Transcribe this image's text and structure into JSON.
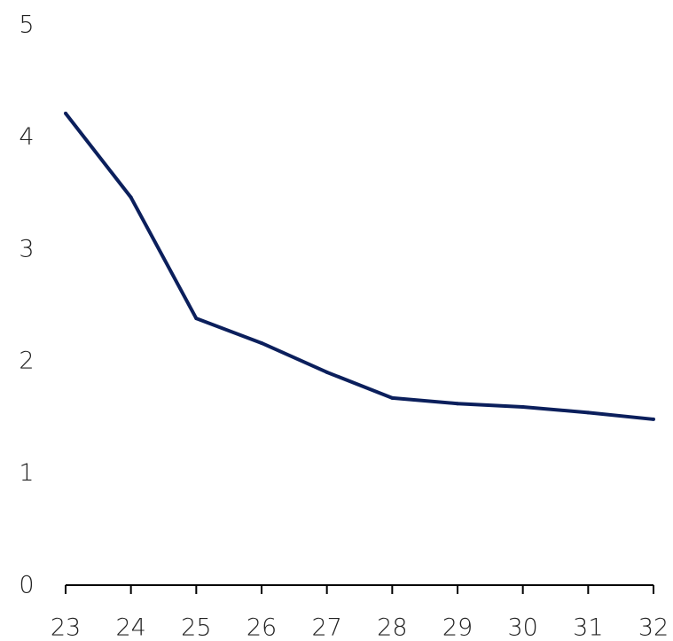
{
  "chart_data": {
    "type": "line",
    "title": "",
    "xlabel": "",
    "ylabel": "",
    "x": [
      23,
      24,
      25,
      26,
      27,
      28,
      29,
      30,
      31,
      32
    ],
    "x_tick_labels": [
      "23",
      "24",
      "25",
      "26",
      "27",
      "28",
      "29",
      "30",
      "31",
      "32"
    ],
    "y_tick_labels": [
      "0",
      "1",
      "2",
      "3",
      "4",
      "5"
    ],
    "series": [
      {
        "values": [
          4.21,
          3.46,
          2.38,
          2.16,
          1.9,
          1.67,
          1.62,
          1.59,
          1.54,
          1.48
        ]
      }
    ],
    "xlim": [
      23,
      32
    ],
    "ylim": [
      0,
      5
    ],
    "grid": false,
    "legend": "none",
    "colors": {
      "line": "#0b1f5c",
      "axis": "#000000",
      "text": "#222222"
    }
  }
}
